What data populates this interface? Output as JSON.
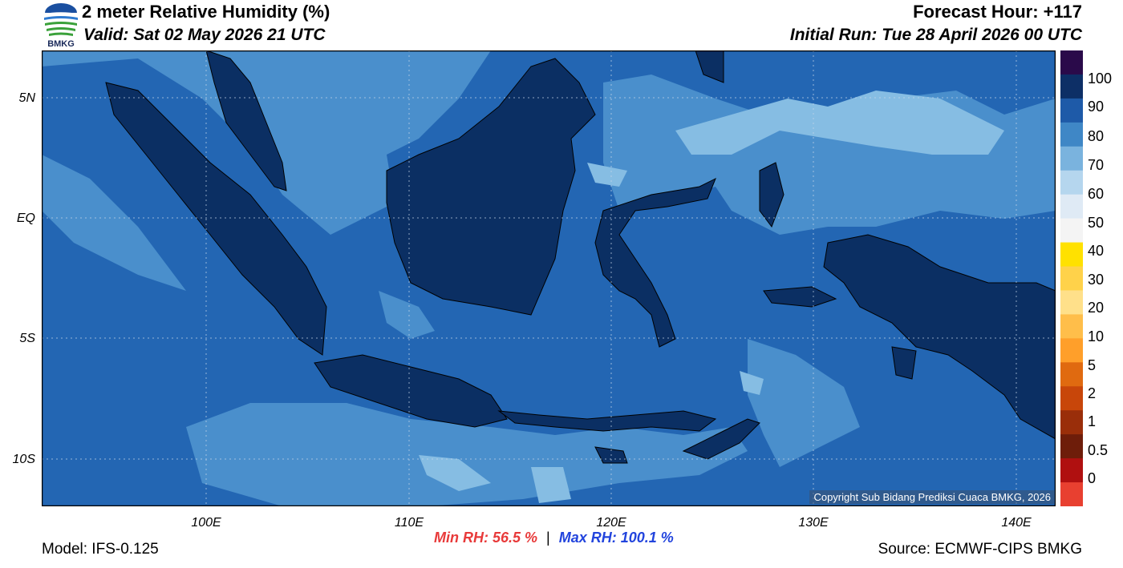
{
  "header": {
    "title": "2 meter Relative Humidity (%)",
    "valid": "Valid: Sat 02 May 2026 21 UTC",
    "forecast_hour": "Forecast Hour: +117",
    "initial_run": "Initial Run: Tue 28 April 2026 00 UTC"
  },
  "logo": {
    "text": "BMKG"
  },
  "axes": {
    "lat_labels": [
      "5N",
      "EQ",
      "5S",
      "10S"
    ],
    "lon_labels": [
      "100E",
      "110E",
      "120E",
      "130E",
      "140E"
    ]
  },
  "colorbar": {
    "labels": [
      "100",
      "90",
      "80",
      "70",
      "60",
      "50",
      "40",
      "30",
      "20",
      "10",
      "5",
      "2",
      "1",
      "0.5",
      "0"
    ],
    "colors": [
      "#2a0a4a",
      "#0d2f66",
      "#1e5aa8",
      "#3f87c6",
      "#7ab3de",
      "#b5d6ee",
      "#dfeaf5",
      "#f4f4f4",
      "#ffe100",
      "#ffd24a",
      "#ffe08a",
      "#ffbe4a",
      "#ff9f2a",
      "#e06a10",
      "#c8460a",
      "#9a2e0a",
      "#6e1d0a",
      "#b01010",
      "#e84030"
    ]
  },
  "stats": {
    "min_label": "Min RH:  56.5 %",
    "separator": "|",
    "max_label": "Max RH: 100.1 %",
    "min_color": "#e83a3a",
    "max_color": "#2244dd"
  },
  "footer": {
    "model": "Model: IFS-0.125",
    "source": "Source: ECMWF-CIPS BMKG",
    "copyright": "Copyright Sub Bidang Prediksi Cuaca BMKG, 2026"
  }
}
